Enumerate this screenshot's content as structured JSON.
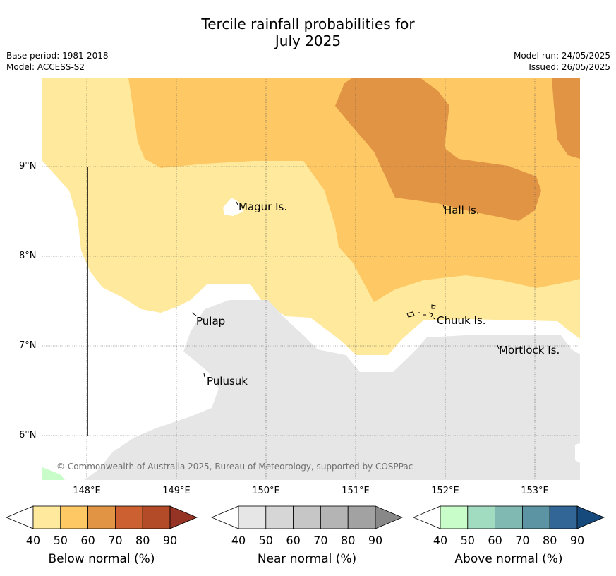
{
  "title_line1": "Tercile rainfall probabilities for",
  "title_line2": "July 2025",
  "base_period": "Base period: 1981-2018",
  "model": "Model: ACCESS-S2",
  "model_run": "Model run: 24/05/2025",
  "issued": "Issued: 26/05/2025",
  "lat_labels": [
    "9°N",
    "8°N",
    "7°N",
    "6°N"
  ],
  "lon_labels": [
    "148°E",
    "149°E",
    "150°E",
    "151°E",
    "152°E",
    "153°E"
  ],
  "places": {
    "magur": "Magur Is.",
    "hall": "Hall Is.",
    "pulap": "Pulap",
    "chuuk": "Chuuk Is.",
    "mortlock": "Mortlock Is.",
    "pulusuk": "Pulusuk"
  },
  "copyright": "© Commonwealth of Australia 2025, Bureau of Meteorology, supported by COSPPac",
  "colorbars": [
    {
      "title": "Below normal (%)",
      "ticks": [
        "40",
        "50",
        "60",
        "70",
        "80",
        "90"
      ],
      "colors": [
        "#ffffff",
        "#ffe99c",
        "#fec864",
        "#e09444",
        "#cc6030",
        "#b34a28",
        "#953324"
      ]
    },
    {
      "title": "Near normal (%)",
      "ticks": [
        "40",
        "50",
        "60",
        "70",
        "80",
        "90"
      ],
      "colors": [
        "#ffffff",
        "#e6e6e6",
        "#d6d6d6",
        "#c6c6c6",
        "#b4b4b4",
        "#a2a2a2",
        "#888888"
      ]
    },
    {
      "title": "Above normal (%)",
      "ticks": [
        "40",
        "50",
        "60",
        "70",
        "80",
        "90"
      ],
      "colors": [
        "#ffffff",
        "#c8fcc8",
        "#a2dcc0",
        "#80b8b2",
        "#5c94a4",
        "#326696",
        "#164a7c"
      ]
    }
  ]
}
